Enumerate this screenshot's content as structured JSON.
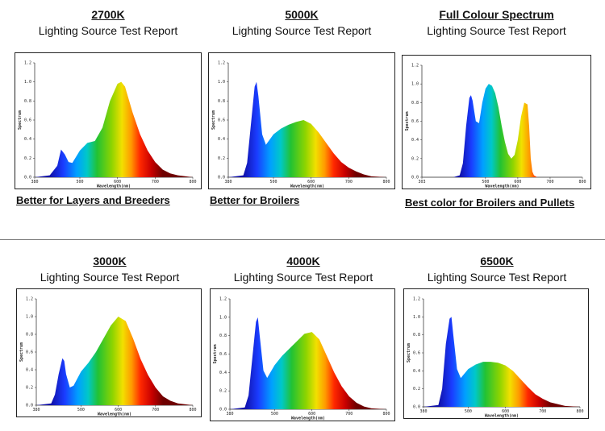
{
  "panels": [
    {
      "title": "2700K",
      "subtitle": "Lighting Source Test Report",
      "caption": "Better for Layers and Breeders"
    },
    {
      "title": "5000K",
      "subtitle": "Lighting Source Test Report",
      "caption": "Better for Broilers"
    },
    {
      "title": "Full Colour Spectrum",
      "subtitle": "Lighting Source Test Report",
      "caption": "Best color for Broilers and Pullets"
    },
    {
      "title": "3000K",
      "subtitle": "Lighting Source Test Report",
      "caption": ""
    },
    {
      "title": "4000K",
      "subtitle": "Lighting Source Test Report",
      "caption": ""
    },
    {
      "title": "6500K",
      "subtitle": "Lighting Source Test Report",
      "caption": ""
    }
  ],
  "chart_data": [
    {
      "type": "area",
      "title": "2700K",
      "xlabel": "Wavelength(nm)",
      "ylabel": "Spectrum",
      "xlim": [
        380,
        800
      ],
      "ylim": [
        0,
        1.2
      ],
      "x_ticks": [
        "380",
        "500",
        "600",
        "700",
        "800"
      ],
      "y_ticks": [
        "0.0",
        "0.2",
        "0.4",
        "0.6",
        "0.8",
        "1.0",
        "1.2"
      ],
      "x": [
        380,
        420,
        440,
        450,
        460,
        470,
        480,
        500,
        520,
        540,
        560,
        580,
        600,
        610,
        620,
        640,
        660,
        680,
        700,
        720,
        740,
        760,
        800
      ],
      "values": [
        0,
        0.02,
        0.12,
        0.29,
        0.24,
        0.16,
        0.15,
        0.28,
        0.36,
        0.38,
        0.52,
        0.8,
        0.98,
        1.0,
        0.95,
        0.68,
        0.45,
        0.28,
        0.16,
        0.08,
        0.04,
        0.02,
        0.0
      ]
    },
    {
      "type": "area",
      "title": "5000K",
      "xlabel": "Wavelength(nm)",
      "ylabel": "Spectrum",
      "xlim": [
        380,
        800
      ],
      "ylim": [
        0,
        1.2
      ],
      "x_ticks": [
        "380",
        "500",
        "600",
        "700",
        "800"
      ],
      "y_ticks": [
        "0.0",
        "0.2",
        "0.4",
        "0.6",
        "0.8",
        "1.0",
        "1.2"
      ],
      "x": [
        380,
        420,
        430,
        440,
        450,
        455,
        460,
        470,
        480,
        500,
        520,
        540,
        560,
        580,
        600,
        620,
        640,
        660,
        680,
        700,
        720,
        740,
        760,
        800
      ],
      "values": [
        0,
        0.02,
        0.15,
        0.55,
        0.95,
        1.0,
        0.85,
        0.45,
        0.34,
        0.45,
        0.51,
        0.55,
        0.58,
        0.6,
        0.56,
        0.47,
        0.36,
        0.25,
        0.16,
        0.1,
        0.06,
        0.03,
        0.01,
        0.0
      ]
    },
    {
      "type": "area",
      "title": "Full Colour Spectrum",
      "xlabel": "Wavelength(nm)",
      "ylabel": "Spectrum",
      "xlim": [
        303,
        800
      ],
      "ylim": [
        0,
        1.2
      ],
      "x_ticks": [
        "303",
        "500",
        "600",
        "700",
        "800"
      ],
      "y_ticks": [
        "0.0",
        "0.2",
        "0.4",
        "0.6",
        "0.8",
        "1.0",
        "1.2"
      ],
      "x": [
        400,
        420,
        430,
        440,
        450,
        455,
        460,
        470,
        480,
        490,
        500,
        510,
        520,
        530,
        540,
        550,
        560,
        570,
        580,
        590,
        600,
        610,
        620,
        630,
        635,
        640,
        645,
        650,
        660,
        680,
        700
      ],
      "values": [
        0,
        0.02,
        0.15,
        0.55,
        0.85,
        0.88,
        0.82,
        0.6,
        0.58,
        0.8,
        0.95,
        1.0,
        0.98,
        0.9,
        0.75,
        0.55,
        0.38,
        0.25,
        0.2,
        0.24,
        0.4,
        0.65,
        0.8,
        0.78,
        0.55,
        0.2,
        0.06,
        0.02,
        0.0,
        0.0,
        0.0
      ]
    },
    {
      "type": "area",
      "title": "3000K",
      "xlabel": "Wavelength(nm)",
      "ylabel": "Spectrum",
      "xlim": [
        380,
        800
      ],
      "ylim": [
        0,
        1.2
      ],
      "x_ticks": [
        "380",
        "500",
        "600",
        "700",
        "800"
      ],
      "y_ticks": [
        "0.0",
        "0.2",
        "0.4",
        "0.6",
        "0.8",
        "1.0",
        "1.2"
      ],
      "x": [
        380,
        420,
        430,
        440,
        450,
        455,
        460,
        470,
        480,
        500,
        520,
        540,
        560,
        580,
        600,
        620,
        640,
        660,
        680,
        700,
        720,
        740,
        760,
        800
      ],
      "values": [
        0,
        0.02,
        0.12,
        0.35,
        0.53,
        0.5,
        0.35,
        0.2,
        0.22,
        0.38,
        0.48,
        0.6,
        0.75,
        0.9,
        1.0,
        0.95,
        0.75,
        0.52,
        0.34,
        0.2,
        0.1,
        0.05,
        0.02,
        0.0
      ]
    },
    {
      "type": "area",
      "title": "4000K",
      "xlabel": "Wavelength(nm)",
      "ylabel": "Spectrum",
      "xlim": [
        380,
        800
      ],
      "ylim": [
        0,
        1.2
      ],
      "x_ticks": [
        "380",
        "500",
        "600",
        "700",
        "800"
      ],
      "y_ticks": [
        "0.0",
        "0.2",
        "0.4",
        "0.6",
        "0.8",
        "1.0",
        "1.2"
      ],
      "x": [
        380,
        420,
        430,
        440,
        450,
        455,
        460,
        470,
        480,
        500,
        520,
        540,
        560,
        580,
        600,
        620,
        640,
        660,
        680,
        700,
        720,
        740,
        760,
        800
      ],
      "values": [
        0,
        0.02,
        0.15,
        0.55,
        0.95,
        1.0,
        0.8,
        0.42,
        0.34,
        0.48,
        0.58,
        0.66,
        0.74,
        0.82,
        0.84,
        0.76,
        0.58,
        0.4,
        0.25,
        0.14,
        0.07,
        0.03,
        0.01,
        0.0
      ]
    },
    {
      "type": "area",
      "title": "6500K",
      "xlabel": "Wavelength(nm)",
      "ylabel": "Spectrum",
      "xlim": [
        380,
        800
      ],
      "ylim": [
        0,
        1.2
      ],
      "x_ticks": [
        "380",
        "500",
        "600",
        "700",
        "800"
      ],
      "y_ticks": [
        "0.0",
        "0.2",
        "0.4",
        "0.6",
        "0.8",
        "1.0",
        "1.2"
      ],
      "x": [
        380,
        420,
        430,
        440,
        450,
        455,
        460,
        470,
        480,
        500,
        520,
        540,
        560,
        580,
        600,
        620,
        640,
        660,
        680,
        700,
        720,
        740,
        760,
        800
      ],
      "values": [
        0,
        0.02,
        0.2,
        0.7,
        0.98,
        1.0,
        0.8,
        0.42,
        0.32,
        0.42,
        0.47,
        0.5,
        0.5,
        0.49,
        0.46,
        0.4,
        0.31,
        0.22,
        0.14,
        0.09,
        0.05,
        0.03,
        0.01,
        0.0
      ]
    }
  ]
}
